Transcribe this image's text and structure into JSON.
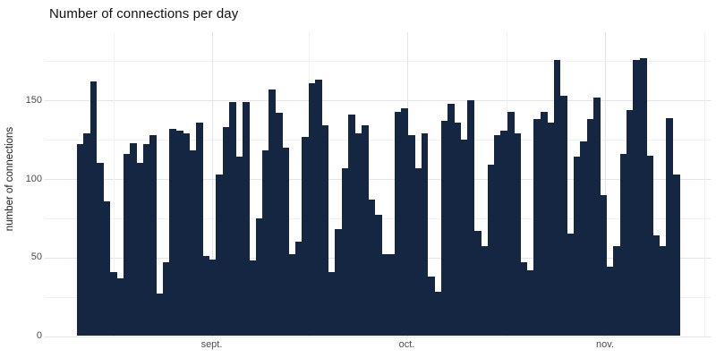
{
  "chart_data": {
    "type": "bar",
    "title": "Number of connections per day",
    "xlabel": "",
    "ylabel": "number of connections",
    "x_axis": {
      "unit": "date (daily bars)",
      "major_tick_labels": [
        "sept.",
        "oct.",
        "nov."
      ]
    },
    "y_axis": {
      "tick_values": [
        0,
        50,
        100,
        150
      ],
      "minor_tick_step": 25,
      "ylim": [
        0,
        193
      ]
    },
    "grid": "on",
    "legend": "none",
    "values": [
      122,
      129,
      162,
      110,
      86,
      41,
      37,
      116,
      123,
      110,
      122,
      128,
      27,
      47,
      132,
      131,
      129,
      118,
      136,
      51,
      49,
      103,
      133,
      149,
      114,
      149,
      48,
      75,
      118,
      157,
      142,
      120,
      52,
      60,
      127,
      161,
      163,
      134,
      41,
      68,
      107,
      141,
      129,
      134,
      87,
      77,
      52,
      52,
      143,
      145,
      128,
      107,
      129,
      38,
      28,
      137,
      148,
      136,
      125,
      150,
      67,
      57,
      109,
      128,
      131,
      143,
      129,
      47,
      42,
      138,
      143,
      136,
      176,
      153,
      65,
      114,
      124,
      138,
      152,
      90,
      44,
      57,
      116,
      144,
      176,
      177,
      115,
      64,
      57,
      139,
      103
    ],
    "colors": {
      "bar": "#152642",
      "grid_major": "#e4e4e4",
      "grid_minor": "#f1f1f1",
      "axis_text": "#4d4d4d",
      "title_text": "#111111",
      "background": "#ffffff"
    }
  }
}
